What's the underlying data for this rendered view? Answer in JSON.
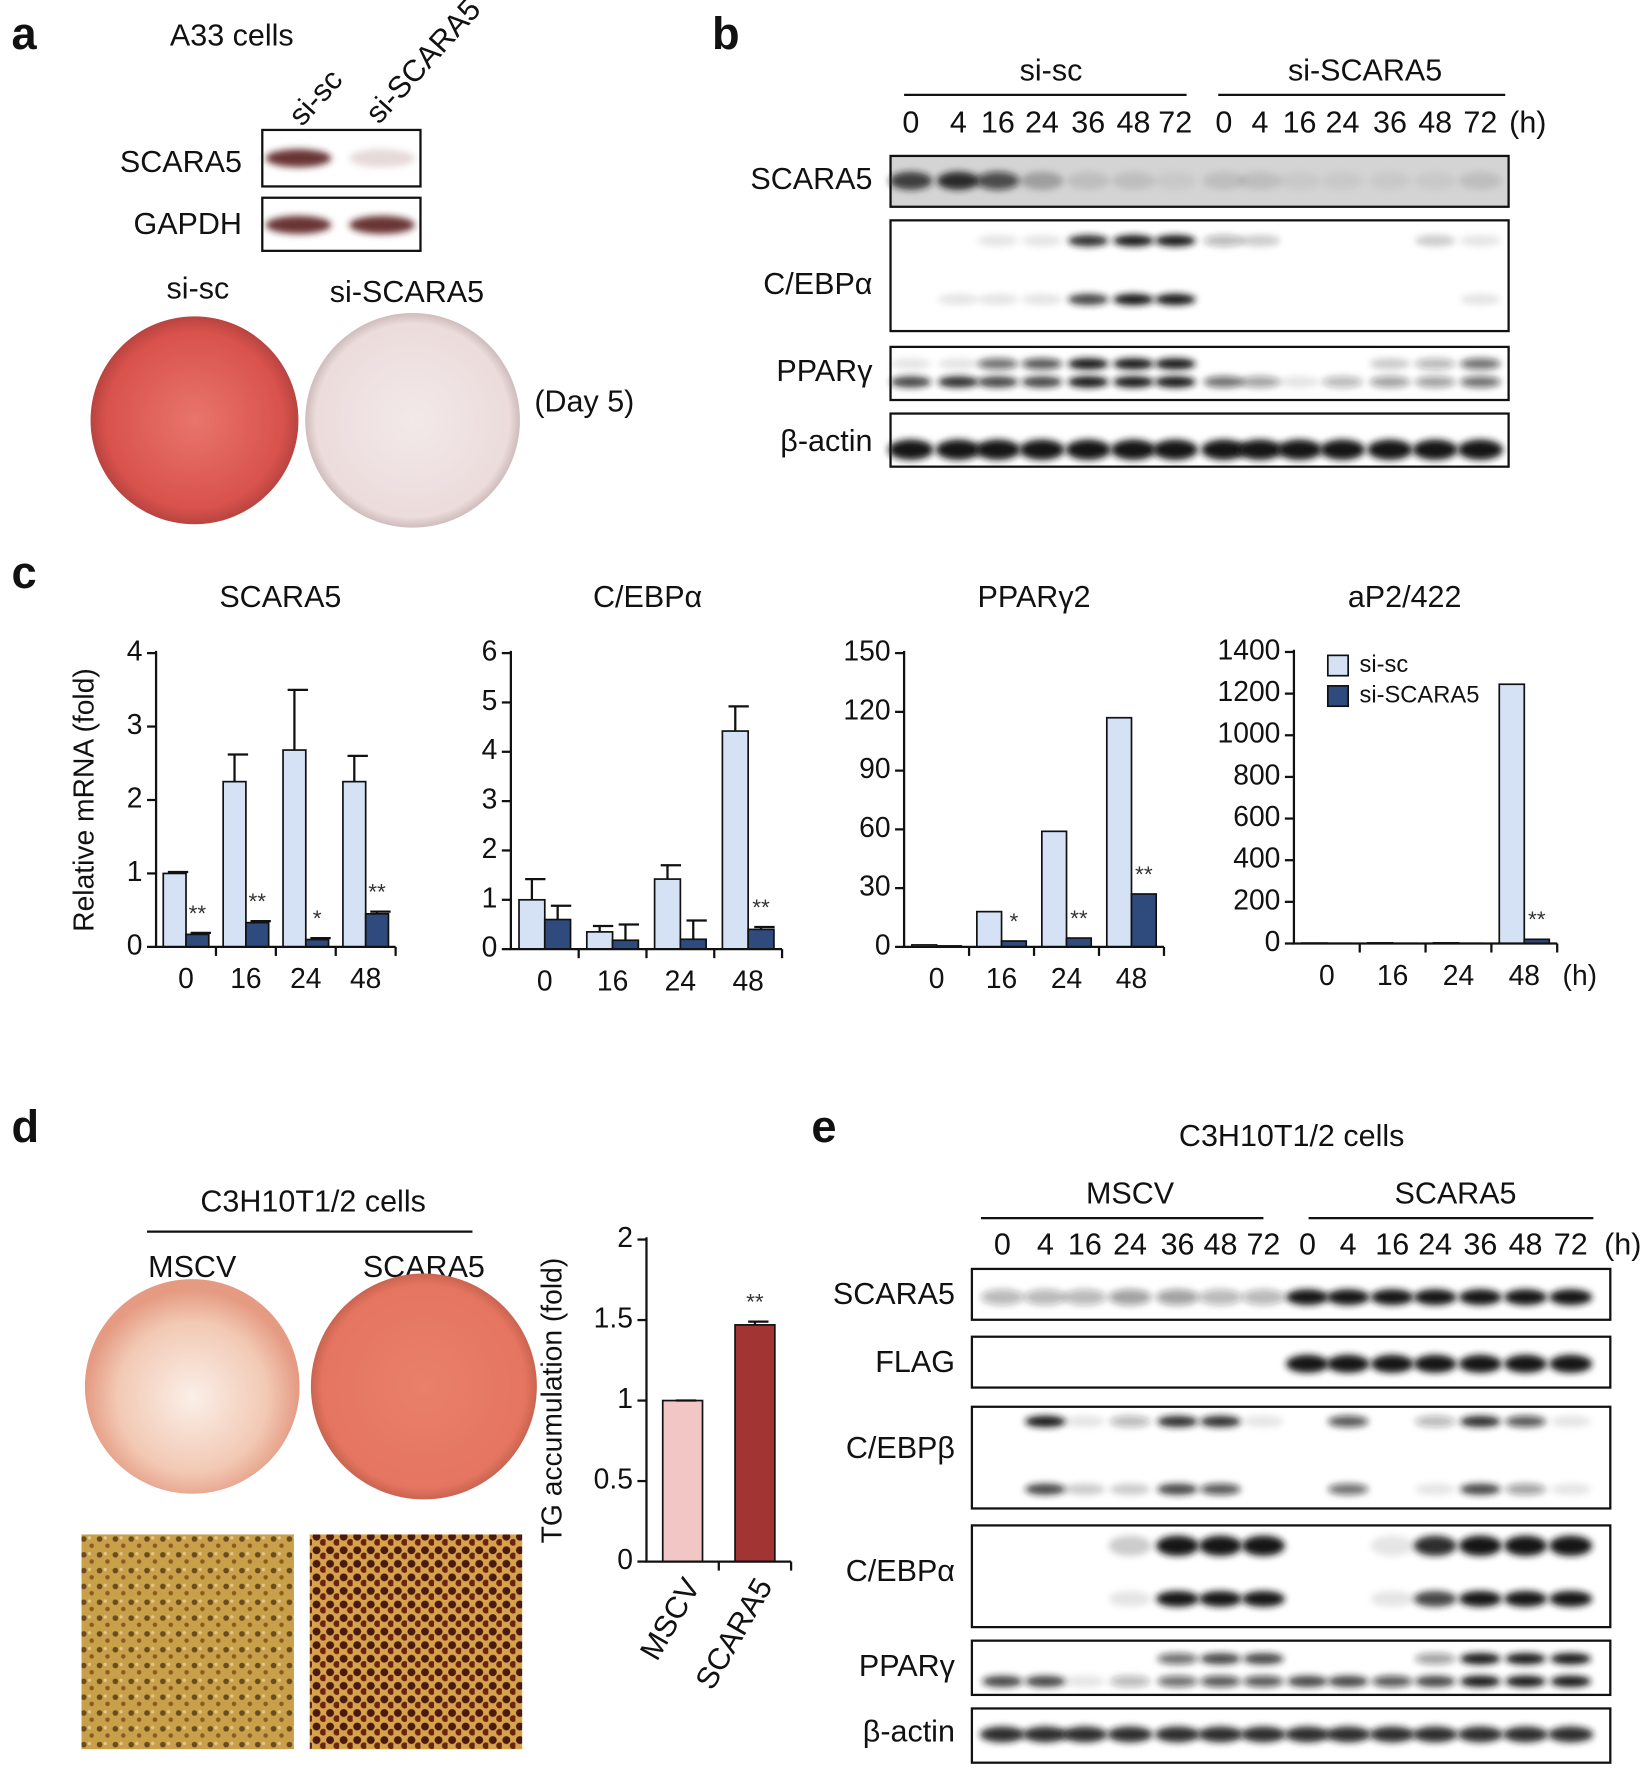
{
  "panels": {
    "a": {
      "label": "a",
      "title": "A33 cells",
      "lanes": [
        "si-sc",
        "si-SCARA5"
      ],
      "rows": [
        "SCARA5",
        "GAPDH"
      ],
      "plates": [
        "si-sc",
        "si-SCARA5"
      ],
      "note": "(Day 5)"
    },
    "b": {
      "label": "b",
      "groups": [
        "si-sc",
        "si-SCARA5"
      ],
      "times": [
        "0",
        "4",
        "16",
        "24",
        "36",
        "48",
        "72"
      ],
      "unit": "(h)",
      "rows": [
        "SCARA5",
        "C/EBPα",
        "PPARγ",
        "β-actin"
      ]
    },
    "c": {
      "label": "c"
    },
    "d": {
      "label": "d",
      "title": "C3H10T1/2 cells",
      "plates": [
        "MSCV",
        "SCARA5"
      ]
    },
    "e": {
      "label": "e",
      "title": "C3H10T1/2 cells",
      "groups": [
        "MSCV",
        "SCARA5"
      ],
      "times": [
        "0",
        "4",
        "16",
        "24",
        "36",
        "48",
        "72"
      ],
      "unit": "(h)",
      "rows": [
        "SCARA5",
        "FLAG",
        "C/EBPβ",
        "C/EBPα",
        "PPARγ",
        "β-actin"
      ]
    }
  },
  "chart_data": [
    {
      "type": "bar",
      "title": "SCARA5",
      "y_label": "Relative mRNA (fold)",
      "categories": [
        "0",
        "16",
        "24",
        "48"
      ],
      "series": [
        {
          "color": "#d5e2f5",
          "values": [
            1.0,
            2.25,
            2.68,
            2.25
          ],
          "errors": [
            0.02,
            0.37,
            0.82,
            0.35
          ]
        },
        {
          "color": "#2f4b7e",
          "values": [
            0.17,
            0.33,
            0.1,
            0.45
          ],
          "errors": [
            0.02,
            0.02,
            0.02,
            0.03
          ]
        }
      ],
      "significance": [
        "**",
        "**",
        "*",
        "**"
      ],
      "ylim": [
        0,
        4
      ],
      "yticks": [
        0,
        1,
        2,
        3,
        4
      ]
    },
    {
      "type": "bar",
      "title": "C/EBPα",
      "categories": [
        "0",
        "16",
        "24",
        "48"
      ],
      "series": [
        {
          "color": "#d5e2f5",
          "values": [
            1.0,
            0.35,
            1.42,
            4.42
          ],
          "errors": [
            0.42,
            0.12,
            0.28,
            0.5
          ]
        },
        {
          "color": "#2f4b7e",
          "values": [
            0.6,
            0.18,
            0.2,
            0.4
          ],
          "errors": [
            0.28,
            0.32,
            0.38,
            0.05
          ]
        }
      ],
      "significance": [
        null,
        null,
        null,
        "**"
      ],
      "ylim": [
        0,
        6
      ],
      "yticks": [
        0,
        1,
        2,
        3,
        4,
        5,
        6
      ]
    },
    {
      "type": "bar",
      "title": "PPARγ2",
      "categories": [
        "0",
        "16",
        "24",
        "48"
      ],
      "series": [
        {
          "color": "#d5e2f5",
          "values": [
            1,
            18,
            59,
            117
          ]
        },
        {
          "color": "#2f4b7e",
          "values": [
            0.5,
            3,
            4.5,
            27
          ]
        }
      ],
      "significance": [
        null,
        "*",
        "**",
        "**"
      ],
      "ylim": [
        0,
        150
      ],
      "yticks": [
        0,
        30,
        60,
        90,
        120,
        150
      ]
    },
    {
      "type": "bar",
      "title": "aP2/422",
      "categories": [
        "0",
        "16",
        "24",
        "48"
      ],
      "x_unit": "(h)",
      "series": [
        {
          "name": "si-sc",
          "color": "#d5e2f5",
          "values": [
            2,
            3,
            3,
            1245
          ]
        },
        {
          "name": "si-SCARA5",
          "color": "#2f4b7e",
          "values": [
            1,
            1,
            1,
            20
          ]
        }
      ],
      "significance": [
        null,
        null,
        null,
        "**"
      ],
      "ylim": [
        0,
        1400
      ],
      "yticks": [
        0,
        200,
        400,
        600,
        800,
        1000,
        1200,
        1400
      ],
      "legend": "upper left"
    },
    {
      "type": "bar",
      "y_label": "TG accumulation (fold)",
      "categories": [
        "MSCV",
        "SCARA5"
      ],
      "series": [
        {
          "colors": [
            "#f3c6c6",
            "#a23434"
          ],
          "values": [
            1,
            1.47
          ],
          "errors": [
            0,
            0.02
          ]
        }
      ],
      "significance": [
        null,
        "**"
      ],
      "ylim": [
        0,
        2
      ],
      "yticks": [
        0,
        0.5,
        1,
        1.5,
        2
      ]
    }
  ]
}
